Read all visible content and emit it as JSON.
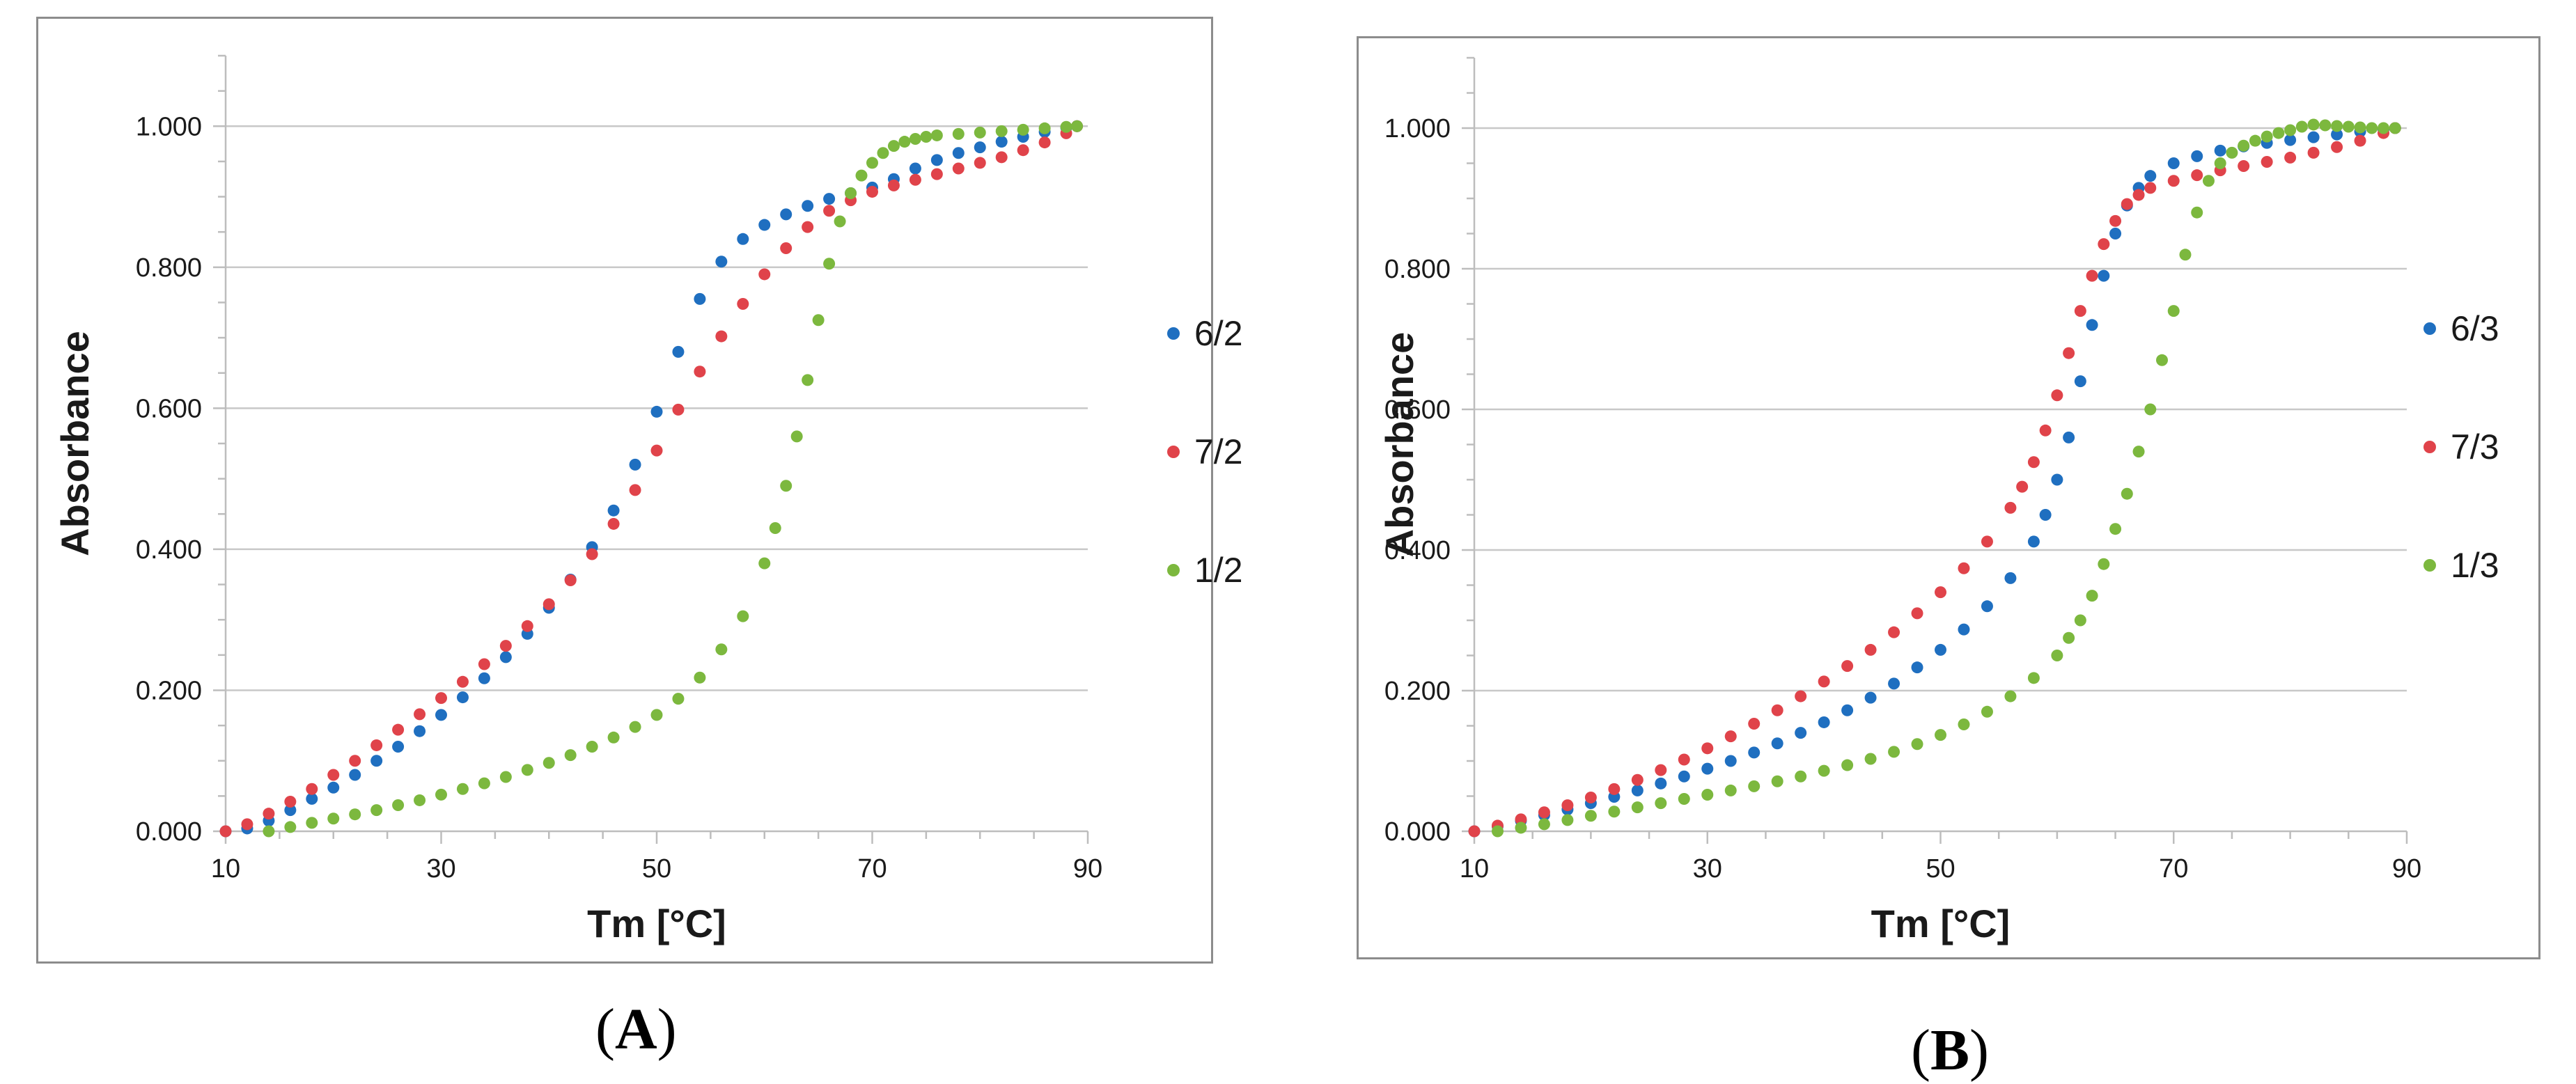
{
  "figure": {
    "caption_a_letter": "A",
    "caption_b_letter": "B"
  },
  "chart_data": [
    {
      "type": "scatter",
      "panel": "A",
      "title": "",
      "xlabel": "Tm [°C]",
      "ylabel": "Absorbance",
      "xlim": [
        10,
        90
      ],
      "ylim": [
        0,
        1.1
      ],
      "x_ticks": [
        10,
        30,
        50,
        70,
        90
      ],
      "y_ticks": [
        0,
        0.2,
        0.4,
        0.6,
        0.8,
        1.0
      ],
      "x_tick_labels": [
        "10",
        "30",
        "50",
        "70",
        "90"
      ],
      "y_tick_labels": [
        "0.000",
        "0.200",
        "0.400",
        "0.600",
        "0.800",
        "1.000"
      ],
      "grid": "horizontal",
      "legend_position": "right",
      "series": [
        {
          "name": "6/2",
          "color": "#1f6fc0",
          "x": [
            10,
            12,
            14,
            16,
            18,
            20,
            22,
            24,
            26,
            28,
            30,
            32,
            34,
            36,
            38,
            40,
            42,
            44,
            46,
            48,
            50,
            52,
            54,
            56,
            58,
            60,
            62,
            64,
            66,
            68,
            70,
            72,
            74,
            76,
            78,
            80,
            82,
            84,
            86,
            88,
            89
          ],
          "y": [
            0.0,
            0.004,
            0.015,
            0.03,
            0.046,
            0.062,
            0.08,
            0.1,
            0.12,
            0.142,
            0.165,
            0.19,
            0.217,
            0.247,
            0.28,
            0.317,
            0.357,
            0.403,
            0.455,
            0.52,
            0.595,
            0.68,
            0.755,
            0.808,
            0.84,
            0.86,
            0.875,
            0.887,
            0.897,
            0.905,
            0.913,
            0.925,
            0.94,
            0.952,
            0.962,
            0.97,
            0.978,
            0.985,
            0.992,
            0.998,
            1.0
          ]
        },
        {
          "name": "7/2",
          "color": "#e0434a",
          "x": [
            10,
            12,
            14,
            16,
            18,
            20,
            22,
            24,
            26,
            28,
            30,
            32,
            34,
            36,
            38,
            40,
            42,
            44,
            46,
            48,
            50,
            52,
            54,
            56,
            58,
            60,
            62,
            64,
            66,
            68,
            70,
            72,
            74,
            76,
            78,
            80,
            82,
            84,
            86,
            88,
            89
          ],
          "y": [
            0.0,
            0.01,
            0.025,
            0.042,
            0.06,
            0.08,
            0.1,
            0.122,
            0.144,
            0.166,
            0.189,
            0.212,
            0.237,
            0.263,
            0.291,
            0.322,
            0.356,
            0.393,
            0.436,
            0.484,
            0.54,
            0.598,
            0.652,
            0.702,
            0.748,
            0.79,
            0.827,
            0.857,
            0.88,
            0.895,
            0.907,
            0.916,
            0.924,
            0.932,
            0.94,
            0.948,
            0.956,
            0.966,
            0.977,
            0.99,
            1.0
          ]
        },
        {
          "name": "1/2",
          "color": "#7cb83e",
          "x": [
            14,
            16,
            18,
            20,
            22,
            24,
            26,
            28,
            30,
            32,
            34,
            36,
            38,
            40,
            42,
            44,
            46,
            48,
            50,
            52,
            54,
            56,
            58,
            60,
            61,
            62,
            63,
            64,
            65,
            66,
            67,
            68,
            69,
            70,
            71,
            72,
            73,
            74,
            75,
            76,
            78,
            80,
            82,
            84,
            86,
            88,
            89
          ],
          "y": [
            0.0,
            0.006,
            0.012,
            0.018,
            0.024,
            0.03,
            0.037,
            0.044,
            0.052,
            0.06,
            0.068,
            0.077,
            0.087,
            0.097,
            0.108,
            0.12,
            0.133,
            0.148,
            0.165,
            0.188,
            0.218,
            0.258,
            0.305,
            0.38,
            0.43,
            0.49,
            0.56,
            0.64,
            0.725,
            0.805,
            0.865,
            0.905,
            0.93,
            0.948,
            0.962,
            0.972,
            0.978,
            0.982,
            0.985,
            0.987,
            0.989,
            0.991,
            0.993,
            0.995,
            0.997,
            0.999,
            1.0
          ]
        }
      ]
    },
    {
      "type": "scatter",
      "panel": "B",
      "title": "",
      "xlabel": "Tm [°C]",
      "ylabel": "Absorbance",
      "xlim": [
        10,
        90
      ],
      "ylim": [
        0,
        1.1
      ],
      "x_ticks": [
        10,
        30,
        50,
        70,
        90
      ],
      "y_ticks": [
        0,
        0.2,
        0.4,
        0.6,
        0.8,
        1.0
      ],
      "x_tick_labels": [
        "10",
        "30",
        "50",
        "70",
        "90"
      ],
      "y_tick_labels": [
        "0.000",
        "0.200",
        "0.400",
        "0.600",
        "0.800",
        "1.000"
      ],
      "grid": "horizontal",
      "legend_position": "right",
      "series": [
        {
          "name": "6/3",
          "color": "#1f6fc0",
          "x": [
            10,
            12,
            14,
            16,
            18,
            20,
            22,
            24,
            26,
            28,
            30,
            32,
            34,
            36,
            38,
            40,
            42,
            44,
            46,
            48,
            50,
            52,
            54,
            56,
            58,
            59,
            60,
            61,
            62,
            63,
            64,
            65,
            66,
            67,
            68,
            70,
            72,
            74,
            76,
            78,
            80,
            82,
            84,
            86,
            88,
            89
          ],
          "y": [
            0.0,
            0.007,
            0.015,
            0.023,
            0.031,
            0.04,
            0.049,
            0.058,
            0.068,
            0.078,
            0.089,
            0.1,
            0.112,
            0.125,
            0.14,
            0.155,
            0.172,
            0.19,
            0.21,
            0.233,
            0.258,
            0.287,
            0.32,
            0.36,
            0.412,
            0.45,
            0.5,
            0.56,
            0.64,
            0.72,
            0.79,
            0.85,
            0.89,
            0.915,
            0.932,
            0.95,
            0.96,
            0.968,
            0.974,
            0.979,
            0.983,
            0.987,
            0.991,
            0.995,
            0.998,
            1.0
          ]
        },
        {
          "name": "7/3",
          "color": "#e0434a",
          "x": [
            10,
            12,
            14,
            16,
            18,
            20,
            22,
            24,
            26,
            28,
            30,
            32,
            34,
            36,
            38,
            40,
            42,
            44,
            46,
            48,
            50,
            52,
            54,
            56,
            57,
            58,
            59,
            60,
            61,
            62,
            63,
            64,
            65,
            66,
            67,
            68,
            70,
            72,
            74,
            76,
            78,
            80,
            82,
            84,
            86,
            88,
            89
          ],
          "y": [
            0.0,
            0.008,
            0.017,
            0.027,
            0.037,
            0.048,
            0.06,
            0.073,
            0.087,
            0.102,
            0.118,
            0.135,
            0.153,
            0.172,
            0.192,
            0.213,
            0.235,
            0.258,
            0.283,
            0.31,
            0.34,
            0.374,
            0.412,
            0.46,
            0.49,
            0.525,
            0.57,
            0.62,
            0.68,
            0.74,
            0.79,
            0.835,
            0.868,
            0.892,
            0.905,
            0.915,
            0.925,
            0.933,
            0.94,
            0.946,
            0.952,
            0.958,
            0.965,
            0.973,
            0.982,
            0.993,
            1.0
          ]
        },
        {
          "name": "1/3",
          "color": "#7cb83e",
          "x": [
            12,
            14,
            16,
            18,
            20,
            22,
            24,
            26,
            28,
            30,
            32,
            34,
            36,
            38,
            40,
            42,
            44,
            46,
            48,
            50,
            52,
            54,
            56,
            58,
            60,
            61,
            62,
            63,
            64,
            65,
            66,
            67,
            68,
            69,
            70,
            71,
            72,
            73,
            74,
            75,
            76,
            77,
            78,
            79,
            80,
            81,
            82,
            83,
            84,
            85,
            86,
            87,
            88,
            89
          ],
          "y": [
            0.0,
            0.005,
            0.01,
            0.016,
            0.022,
            0.028,
            0.034,
            0.04,
            0.046,
            0.052,
            0.058,
            0.064,
            0.071,
            0.078,
            0.086,
            0.094,
            0.103,
            0.113,
            0.124,
            0.137,
            0.152,
            0.17,
            0.192,
            0.218,
            0.25,
            0.275,
            0.3,
            0.335,
            0.38,
            0.43,
            0.48,
            0.54,
            0.6,
            0.67,
            0.74,
            0.82,
            0.88,
            0.925,
            0.95,
            0.965,
            0.975,
            0.982,
            0.988,
            0.993,
            0.997,
            1.002,
            1.005,
            1.004,
            1.003,
            1.002,
            1.001,
            1.0,
            1.0,
            1.0
          ]
        }
      ]
    }
  ]
}
